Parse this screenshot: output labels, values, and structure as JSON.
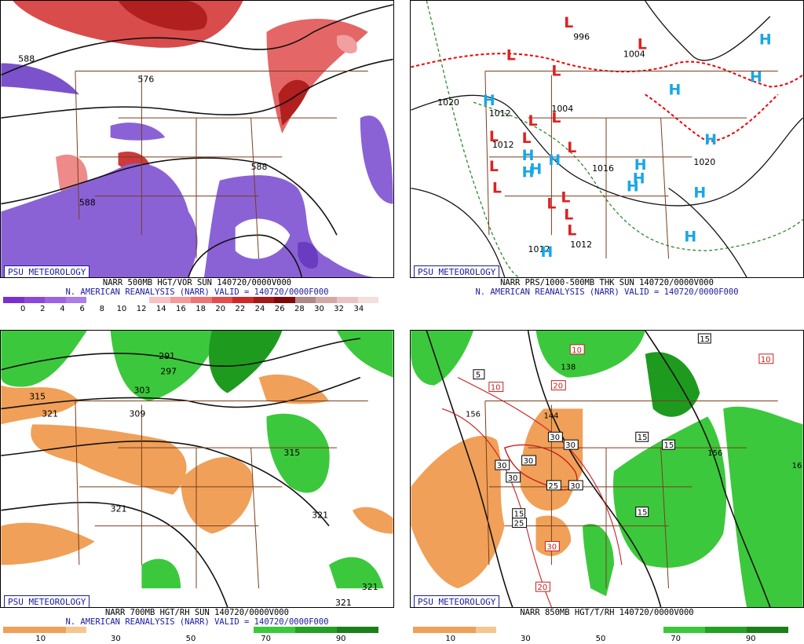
{
  "badge": "PSU METEOROLOGY",
  "panels": [
    {
      "caption1": "NARR 500MB HGT/VOR SUN 140720/0000V000",
      "caption2": "N. AMERICAN REANALYSIS (NARR) VALID = 140720/0000F000",
      "colorbar": [
        "#7b2fd0",
        "#8c48db",
        "#9c63e2",
        "#ad7de8",
        "#ffffff",
        "#ffffff",
        "#ffffff",
        "#f9c1c1",
        "#f59a9a",
        "#ee7575",
        "#e24d4d",
        "#cc2a2a",
        "#a51818",
        "#7d0a0a",
        "#b08888",
        "#d4a7a7",
        "#e8c4c4",
        "#f4dede"
      ],
      "ticks": [
        "0",
        "2",
        "4",
        "6",
        "8",
        "10",
        "12",
        "14",
        "16",
        "18",
        "20",
        "22",
        "24",
        "26",
        "28",
        "30",
        "32",
        "34"
      ],
      "labels": [
        "588",
        "576",
        "588",
        "588"
      ]
    },
    {
      "caption1": "NARR PRS/1000-500MB THK SUN 140720/0000V000",
      "caption2": "N. AMERICAN REANALYSIS (NARR) VALID = 140720/0000F000",
      "isobars": [
        "996",
        "1004",
        "1020",
        "1012",
        "1012",
        "1016",
        "1012",
        "1004",
        "1012",
        "1020",
        "1012",
        "1012"
      ],
      "lows": [
        "L",
        "L",
        "L",
        "L",
        "L",
        "L",
        "L",
        "L",
        "L",
        "L",
        "L",
        "L",
        "L",
        "L",
        "L"
      ],
      "highs": [
        "H",
        "H",
        "H",
        "H",
        "H",
        "H",
        "H",
        "H",
        "H",
        "H",
        "H",
        "H",
        "H",
        "H",
        "H",
        "H",
        "H"
      ]
    },
    {
      "caption1": "NARR 700MB HGT/RH SUN 140720/0000V000",
      "caption2": "N. AMERICAN REANALYSIS (NARR) VALID = 140720/0000F000",
      "colorbar": [
        "#f0a058",
        "#f0a058",
        "#f0a058",
        "#f6c690",
        "#ffffff",
        "#ffffff",
        "#ffffff",
        "#ffffff",
        "#ffffff",
        "#ffffff",
        "#ffffff",
        "#ffffff",
        "#3cc83c",
        "#3cc83c",
        "#24a024",
        "#24a024",
        "#1a7f1a",
        "#1a7f1a"
      ],
      "ticks": [
        "10",
        "30",
        "50",
        "70",
        "90"
      ],
      "labels": [
        "291",
        "297",
        "303",
        "315",
        "321",
        "309",
        "321",
        "315",
        "321",
        "321",
        "321"
      ]
    },
    {
      "caption1": "NARR 850MB HGT/T/RH 140720/0000V000",
      "caption2": "",
      "colorbar": [
        "#f0a058",
        "#f0a058",
        "#f0a058",
        "#f6c690",
        "#ffffff",
        "#ffffff",
        "#ffffff",
        "#ffffff",
        "#ffffff",
        "#ffffff",
        "#ffffff",
        "#ffffff",
        "#3cc83c",
        "#3cc83c",
        "#24a024",
        "#24a024",
        "#1a7f1a",
        "#1a7f1a"
      ],
      "ticks": [
        "10",
        "30",
        "50",
        "70",
        "90"
      ],
      "labels": [
        "15",
        "10",
        "5",
        "10",
        "20",
        "138",
        "156",
        "144",
        "30",
        "30",
        "30",
        "15",
        "30",
        "30",
        "25",
        "30",
        "25",
        "30",
        "20",
        "15",
        "15",
        "15",
        "156",
        "16",
        "10"
      ]
    }
  ]
}
